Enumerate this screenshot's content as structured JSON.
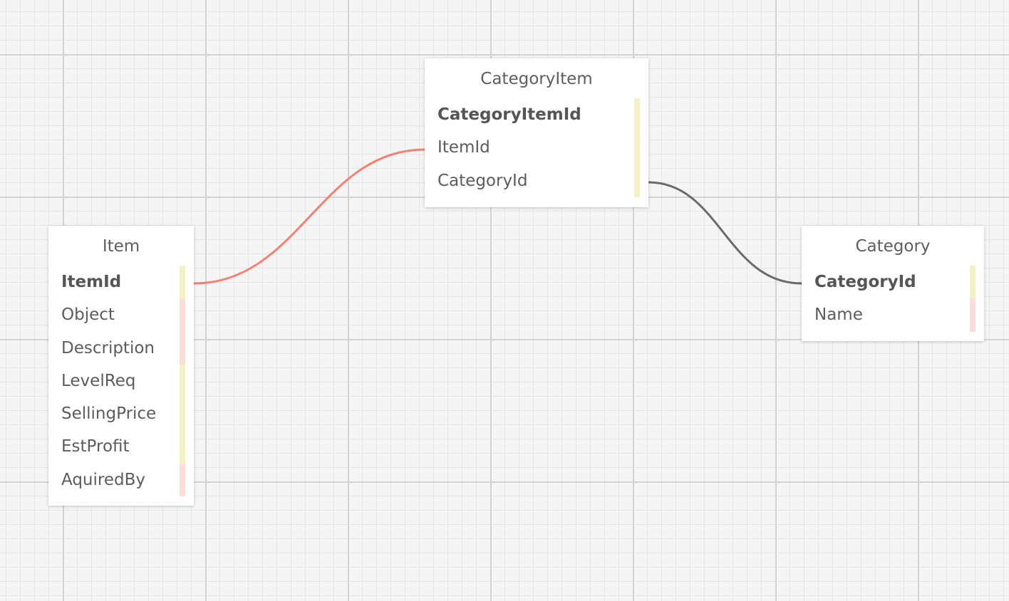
{
  "tables": {
    "item": {
      "name": "Item",
      "fields": [
        {
          "name": "ItemId",
          "primary": true,
          "marker": "yellow"
        },
        {
          "name": "Object",
          "primary": false,
          "marker": "pink"
        },
        {
          "name": "Description",
          "primary": false,
          "marker": "pink"
        },
        {
          "name": "LevelReq",
          "primary": false,
          "marker": "yellow"
        },
        {
          "name": "SellingPrice",
          "primary": false,
          "marker": "yellow"
        },
        {
          "name": "EstProfit",
          "primary": false,
          "marker": "yellow"
        },
        {
          "name": "AquiredBy",
          "primary": false,
          "marker": "pink"
        }
      ]
    },
    "categoryitem": {
      "name": "CategoryItem",
      "fields": [
        {
          "name": "CategoryItemId",
          "primary": true,
          "marker": "yellow"
        },
        {
          "name": "ItemId",
          "primary": false,
          "marker": "yellow"
        },
        {
          "name": "CategoryId",
          "primary": false,
          "marker": "yellow"
        }
      ]
    },
    "category": {
      "name": "Category",
      "fields": [
        {
          "name": "CategoryId",
          "primary": true,
          "marker": "yellow"
        },
        {
          "name": "Name",
          "primary": false,
          "marker": "pink"
        }
      ]
    }
  },
  "relations": [
    {
      "from": "Item.ItemId",
      "to": "CategoryItem.ItemId",
      "color": "#f47f72"
    },
    {
      "from": "CategoryItem.CategoryId",
      "to": "Category.CategoryId",
      "color": "#6b6b6b"
    }
  ],
  "colors": {
    "marker_yellow": "#f4f1c6",
    "marker_pink": "#fbdcdb",
    "grid_major": "#d2d2d2",
    "grid_minor": "#e6e6e6",
    "canvas_background": "#f5f5f5"
  }
}
